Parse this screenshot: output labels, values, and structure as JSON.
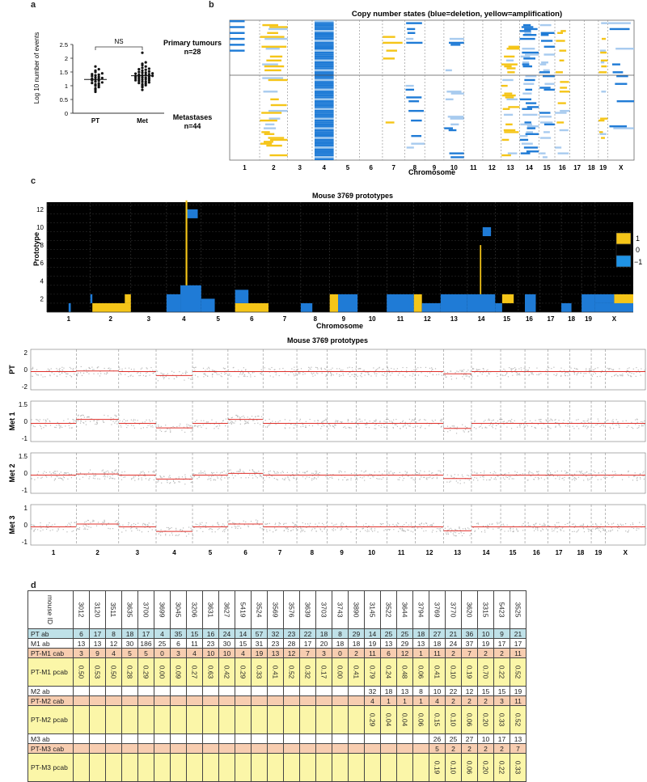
{
  "panels": {
    "a": "a",
    "b": "b",
    "c": "c",
    "d": "d"
  },
  "panel_a": {
    "sig": "NS"
  },
  "panel_b": {
    "title": "Copy number states (blue=deletion, yellow=amplification)",
    "row1": "Primary tumours",
    "row1n": "n=28",
    "row2": "Metastases",
    "row2n": "n=44",
    "xlabel": "Chromosome"
  },
  "panel_c": {
    "title": "Mouse 3769 prototypes",
    "ylabel": "Prototype",
    "xlabel": "Chromosome",
    "legend": [
      "1",
      "0",
      "−1"
    ]
  },
  "panel_c2": {
    "title": "Mouse 3769 prototypes",
    "tracks": [
      {
        "label": "PT",
        "ticks": [
          "2",
          "0",
          "-2"
        ]
      },
      {
        "label": "Met 1",
        "ticks": [
          "1.5",
          "0",
          "-1"
        ]
      },
      {
        "label": "Met 2",
        "ticks": [
          "1.5",
          "0",
          "-1"
        ]
      },
      {
        "label": "Met 3",
        "ticks": [
          "1",
          "0",
          "-1"
        ]
      }
    ]
  },
  "chromosomes": [
    "1",
    "2",
    "3",
    "4",
    "5",
    "6",
    "7",
    "8",
    "9",
    "10",
    "11",
    "12",
    "13",
    "14",
    "15",
    "16",
    "17",
    "18",
    "19",
    "X"
  ],
  "colors": {
    "deletion": "#1f7bd6",
    "amplification": "#f5c518",
    "black": "#000000",
    "segment": "#e0312b"
  },
  "chart_data": [
    {
      "type": "scatter",
      "panel": "a",
      "categories": [
        "PT",
        "Met"
      ],
      "ylabel": "Log 10 number of events",
      "ylim": [
        0,
        2.5
      ],
      "yticks": [
        "0",
        "0.5",
        "1",
        "1.5",
        "2",
        "2.5"
      ],
      "series": [
        {
          "values": [
            0.78,
            0.85,
            0.9,
            0.95,
            1.0,
            1.02,
            1.05,
            1.08,
            1.1,
            1.12,
            1.15,
            1.18,
            1.2,
            1.22,
            1.25,
            1.25,
            1.28,
            1.3,
            1.32,
            1.35,
            1.38,
            1.4,
            1.42,
            1.45,
            1.5,
            1.55,
            1.6,
            1.7
          ]
        },
        {
          "values": [
            0.85,
            0.95,
            1.0,
            1.02,
            1.05,
            1.08,
            1.1,
            1.12,
            1.14,
            1.15,
            1.18,
            1.2,
            1.2,
            1.22,
            1.24,
            1.25,
            1.27,
            1.28,
            1.3,
            1.3,
            1.32,
            1.34,
            1.35,
            1.36,
            1.38,
            1.4,
            1.4,
            1.42,
            1.44,
            1.45,
            1.47,
            1.48,
            1.5,
            1.52,
            1.55,
            1.58,
            1.6,
            1.62,
            1.65,
            1.7,
            1.75,
            1.8,
            1.85,
            2.2
          ]
        }
      ]
    },
    {
      "type": "heatmap",
      "panel": "b",
      "title": "Copy number states (blue=deletion, yellow=amplification)",
      "xlabel": "Chromosome",
      "rows": [
        "Primary tumours n=28",
        "Metastases n=44"
      ]
    },
    {
      "type": "heatmap",
      "panel": "c",
      "title": "Mouse 3769 prototypes",
      "xlabel": "Chromosome",
      "ylabel": "Prototype",
      "yticks": [
        "2",
        "4",
        "6",
        "8",
        "10",
        "12"
      ],
      "legend": [
        1,
        0,
        -1
      ]
    },
    {
      "type": "line",
      "panel": "c2",
      "title": "Mouse 3769 prototypes",
      "series": [
        {
          "name": "PT"
        },
        {
          "name": "Met 1"
        },
        {
          "name": "Met 2"
        },
        {
          "name": "Met 3"
        }
      ]
    }
  ],
  "table": {
    "ids": [
      "3012",
      "3120",
      "3511",
      "3635",
      "3700",
      "3699",
      "3045",
      "3206",
      "3631",
      "3627",
      "5419",
      "3524",
      "3569",
      "3576",
      "3639",
      "3703",
      "3743",
      "3890",
      "3145",
      "3522",
      "3644",
      "3794",
      "3769",
      "3770",
      "3620",
      "3315",
      "5423",
      "3525"
    ],
    "header_label": "mouse ID",
    "rows": [
      {
        "label": "PT ab",
        "style": "r-pt",
        "vals": [
          "6",
          "17",
          "8",
          "18",
          "17",
          "4",
          "35",
          "15",
          "16",
          "24",
          "14",
          "57",
          "32",
          "23",
          "22",
          "18",
          "8",
          "29",
          "14",
          "25",
          "25",
          "18",
          "27",
          "21",
          "36",
          "10",
          "9",
          "21"
        ]
      },
      {
        "label": "M1 ab",
        "style": "",
        "vals": [
          "13",
          "13",
          "12",
          "30",
          "186",
          "25",
          "6",
          "11",
          "23",
          "30",
          "15",
          "31",
          "23",
          "28",
          "17",
          "20",
          "18",
          "18",
          "19",
          "13",
          "29",
          "13",
          "18",
          "24",
          "37",
          "19",
          "17",
          "17"
        ]
      },
      {
        "label": "PT-M1 cab",
        "style": "r-cab",
        "vals": [
          "3",
          "9",
          "4",
          "5",
          "5",
          "0",
          "3",
          "4",
          "10",
          "10",
          "4",
          "19",
          "13",
          "12",
          "7",
          "3",
          "0",
          "2",
          "11",
          "6",
          "12",
          "1",
          "11",
          "2",
          "7",
          "2",
          "2",
          "11"
        ]
      },
      {
        "label": "PT-M1 pcab",
        "style": "r-pcab",
        "vert": true,
        "vals": [
          "0.50",
          "0.53",
          "0.50",
          "0.28",
          "0.29",
          "0.00",
          "0.09",
          "0.27",
          "0.63",
          "0.42",
          "0.29",
          "0.33",
          "0.41",
          "0.52",
          "0.32",
          "0.17",
          "0.00",
          "0.41",
          "0.79",
          "0.24",
          "0.48",
          "0.06",
          "0.41",
          "0.10",
          "0.19",
          "0.70",
          "0.22",
          "0.52"
        ]
      },
      {
        "label": "M2 ab",
        "style": "",
        "vals": [
          "",
          "",
          "",
          "",
          "",
          "",
          "",
          "",
          "",
          "",
          "",
          "",
          "",
          "",
          "",
          "",
          "",
          "",
          "32",
          "18",
          "13",
          "8",
          "10",
          "22",
          "12",
          "15",
          "15",
          "19"
        ]
      },
      {
        "label": "PT-M2 cab",
        "style": "r-cab",
        "vals": [
          "",
          "",
          "",
          "",
          "",
          "",
          "",
          "",
          "",
          "",
          "",
          "",
          "",
          "",
          "",
          "",
          "",
          "",
          "4",
          "1",
          "1",
          "1",
          "4",
          "2",
          "2",
          "2",
          "3",
          "11"
        ]
      },
      {
        "label": "PT-M2 pcab",
        "style": "r-pcab",
        "vert": true,
        "vals": [
          "",
          "",
          "",
          "",
          "",
          "",
          "",
          "",
          "",
          "",
          "",
          "",
          "",
          "",
          "",
          "",
          "",
          "",
          "0.29",
          "0.04",
          "0.04",
          "0.06",
          "0.15",
          "0.10",
          "0.06",
          "0.20",
          "0.33",
          "0.52"
        ]
      },
      {
        "label": "M3 ab",
        "style": "",
        "vals": [
          "",
          "",
          "",
          "",
          "",
          "",
          "",
          "",
          "",
          "",
          "",
          "",
          "",
          "",
          "",
          "",
          "",
          "",
          "",
          "",
          "",
          "",
          "26",
          "25",
          "27",
          "10",
          "17",
          "13"
        ]
      },
      {
        "label": "PT-M3 cab",
        "style": "r-cab",
        "vals": [
          "",
          "",
          "",
          "",
          "",
          "",
          "",
          "",
          "",
          "",
          "",
          "",
          "",
          "",
          "",
          "",
          "",
          "",
          "",
          "",
          "",
          "",
          "5",
          "2",
          "2",
          "2",
          "2",
          "7"
        ]
      },
      {
        "label": "PT-M3 pcab",
        "style": "r-pcab",
        "vert": true,
        "vals": [
          "",
          "",
          "",
          "",
          "",
          "",
          "",
          "",
          "",
          "",
          "",
          "",
          "",
          "",
          "",
          "",
          "",
          "",
          "",
          "",
          "",
          "",
          "0.19",
          "0.10",
          "0.06",
          "0.20",
          "0.22",
          "0.33"
        ]
      }
    ]
  }
}
